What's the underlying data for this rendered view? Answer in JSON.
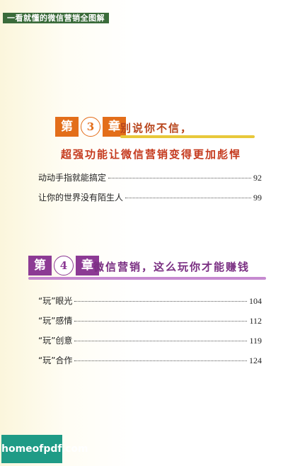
{
  "header": {
    "running_title": "一看就懂的微信营销全图解"
  },
  "chapter3": {
    "label_prefix": "第",
    "number": "3",
    "label_suffix": "章",
    "title_line1": "别说你不信，",
    "title_line2": "超强功能让微信营销变得更加彪悍",
    "accent_color": "#e36e1a",
    "entries": [
      {
        "title": "动动手指就能搞定",
        "page": "92"
      },
      {
        "title": "让你的世界没有陌生人",
        "page": "99"
      }
    ]
  },
  "chapter4": {
    "label_prefix": "第",
    "number": "4",
    "label_suffix": "章",
    "title": "微信营销，这么玩你才能赚钱",
    "accent_color": "#8c3a94",
    "entries": [
      {
        "title": "“玩”眼光",
        "page": "104"
      },
      {
        "title": "“玩”感情",
        "page": "112"
      },
      {
        "title": "“玩”创意",
        "page": "119"
      },
      {
        "title": "“玩”合作",
        "page": "124"
      }
    ]
  },
  "watermark": {
    "text": "homeofpdf.com"
  }
}
